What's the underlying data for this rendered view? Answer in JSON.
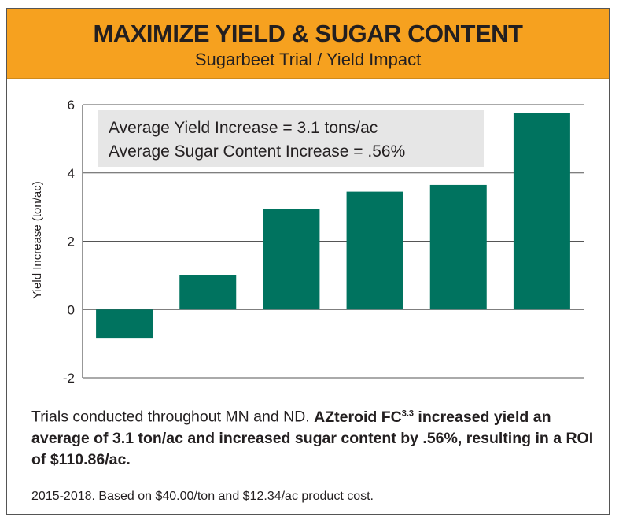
{
  "header": {
    "title": "MAXIMIZE YIELD & SUGAR CONTENT",
    "subtitle": "Sugarbeet Trial / Yield Impact"
  },
  "colors": {
    "header_bg": "#f6a11f",
    "bar": "#00735f",
    "annotation_bg": "#e6e6e6"
  },
  "chart_data": {
    "type": "bar",
    "categories": [
      "",
      "",
      "",
      "",
      "",
      ""
    ],
    "values": [
      -0.85,
      1.0,
      2.95,
      3.45,
      3.65,
      5.75
    ],
    "ylabel": "Yield Increase (ton/ac)",
    "xlabel": "",
    "ylim": [
      -2,
      6
    ],
    "yticks": [
      "6",
      "4",
      "2",
      "0",
      "-2"
    ],
    "grid": true,
    "annotation": [
      "Average Yield Increase = 3.1 tons/ac",
      "Average Sugar Content Increase = .56%"
    ]
  },
  "caption": {
    "plain": "Trials conducted throughout MN and ND. ",
    "product": "AZteroid FC",
    "superscript": "3.3",
    "bold_rest": " increased yield an average of 3.1 ton/ac and increased sugar content by .56%, resulting in a ROI of $110.86/ac."
  },
  "footnote": "2015-2018. Based on $40.00/ton and $12.34/ac product cost."
}
